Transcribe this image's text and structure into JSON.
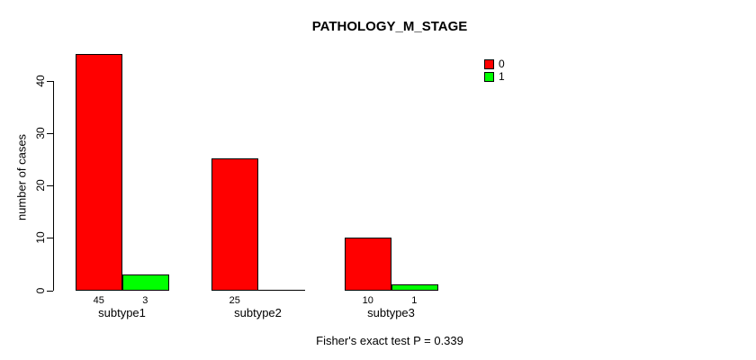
{
  "chart_data": {
    "type": "bar",
    "title": "PATHOLOGY_M_STAGE",
    "ylabel": "number of cases",
    "xlabel": "",
    "categories": [
      "subtype1",
      "subtype2",
      "subtype3"
    ],
    "series": [
      {
        "name": "0",
        "color": "#FF0000",
        "values": [
          45,
          25,
          10
        ]
      },
      {
        "name": "1",
        "color": "#00FF00",
        "values": [
          3,
          0,
          1
        ]
      }
    ],
    "bar_value_labels": [
      [
        "45",
        "3"
      ],
      [
        "25",
        ""
      ],
      [
        "10",
        "1"
      ]
    ],
    "yticks": [
      0,
      10,
      20,
      30,
      40
    ],
    "ylim": [
      0,
      46
    ],
    "grid": false,
    "legend_position": "top-right",
    "annotation": "Fisher's exact test P = 0.339"
  }
}
